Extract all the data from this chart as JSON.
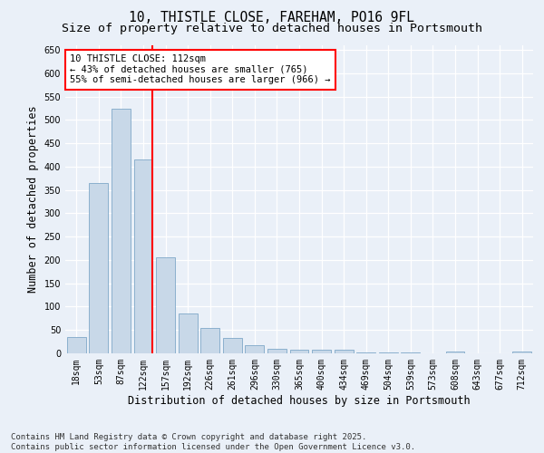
{
  "title_line1": "10, THISTLE CLOSE, FAREHAM, PO16 9FL",
  "title_line2": "Size of property relative to detached houses in Portsmouth",
  "xlabel": "Distribution of detached houses by size in Portsmouth",
  "ylabel": "Number of detached properties",
  "categories": [
    "18sqm",
    "53sqm",
    "87sqm",
    "122sqm",
    "157sqm",
    "192sqm",
    "226sqm",
    "261sqm",
    "296sqm",
    "330sqm",
    "365sqm",
    "400sqm",
    "434sqm",
    "469sqm",
    "504sqm",
    "539sqm",
    "573sqm",
    "608sqm",
    "643sqm",
    "677sqm",
    "712sqm"
  ],
  "values": [
    35,
    365,
    525,
    415,
    205,
    85,
    55,
    33,
    18,
    10,
    8,
    8,
    8,
    1,
    1,
    1,
    0,
    3,
    0,
    0,
    3
  ],
  "bar_color": "#c8d8e8",
  "bar_edgecolor": "#7fa8c8",
  "red_line_index": 3,
  "property_label": "10 THISTLE CLOSE: 112sqm",
  "annotation_line1": "← 43% of detached houses are smaller (765)",
  "annotation_line2": "55% of semi-detached houses are larger (966) →",
  "annotation_box_edgecolor": "red",
  "red_line_color": "red",
  "ylim": [
    0,
    660
  ],
  "yticks": [
    0,
    50,
    100,
    150,
    200,
    250,
    300,
    350,
    400,
    450,
    500,
    550,
    600,
    650
  ],
  "bg_color": "#eaf0f8",
  "plot_bg_color": "#eaf0f8",
  "footer_line1": "Contains HM Land Registry data © Crown copyright and database right 2025.",
  "footer_line2": "Contains public sector information licensed under the Open Government Licence v3.0.",
  "title_fontsize": 10.5,
  "subtitle_fontsize": 9.5,
  "axis_label_fontsize": 8.5,
  "tick_fontsize": 7,
  "annotation_fontsize": 7.5,
  "footer_fontsize": 6.5
}
